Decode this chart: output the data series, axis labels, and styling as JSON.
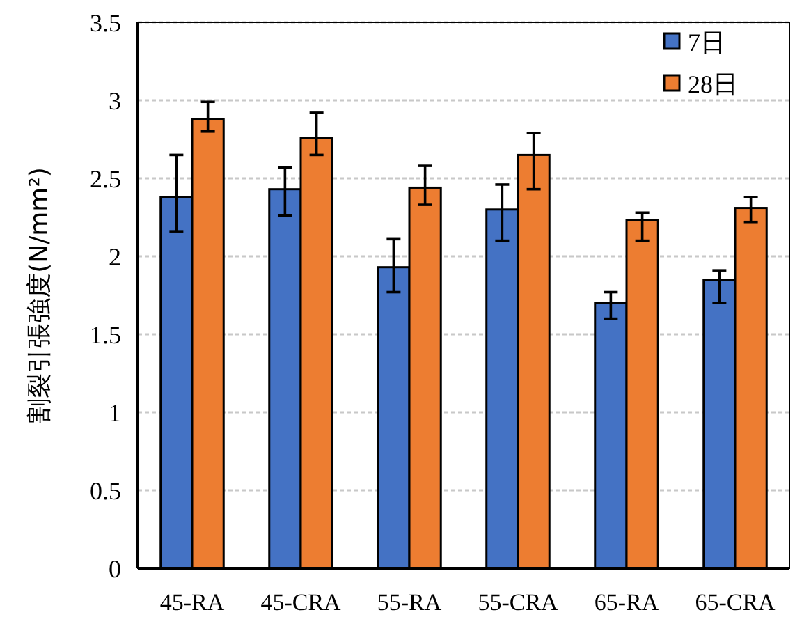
{
  "chart_data": {
    "type": "bar",
    "ylabel": "割裂引張強度(N/mm²)",
    "categories": [
      "45-RA",
      "45-CRA",
      "55-RA",
      "55-CRA",
      "65-RA",
      "65-CRA"
    ],
    "series": [
      {
        "name": "7日",
        "color": "#4472c4",
        "values": [
          2.38,
          2.43,
          1.93,
          2.3,
          1.7,
          1.85
        ],
        "errors": [
          [
            2.16,
            2.65
          ],
          [
            2.26,
            2.57
          ],
          [
            1.77,
            2.11
          ],
          [
            2.1,
            2.46
          ],
          [
            1.6,
            1.77
          ],
          [
            1.7,
            1.91
          ]
        ]
      },
      {
        "name": "28日",
        "color": "#ed7d31",
        "values": [
          2.88,
          2.76,
          2.44,
          2.65,
          2.23,
          2.31
        ],
        "errors": [
          [
            2.8,
            2.99
          ],
          [
            2.65,
            2.92
          ],
          [
            2.33,
            2.58
          ],
          [
            2.43,
            2.79
          ],
          [
            2.1,
            2.28
          ],
          [
            2.22,
            2.38
          ]
        ]
      }
    ],
    "ylim": [
      0,
      3.5
    ],
    "yticks": [
      0,
      0.5,
      1,
      1.5,
      2,
      2.5,
      3,
      3.5
    ],
    "grid": "y",
    "legend": "top right"
  }
}
